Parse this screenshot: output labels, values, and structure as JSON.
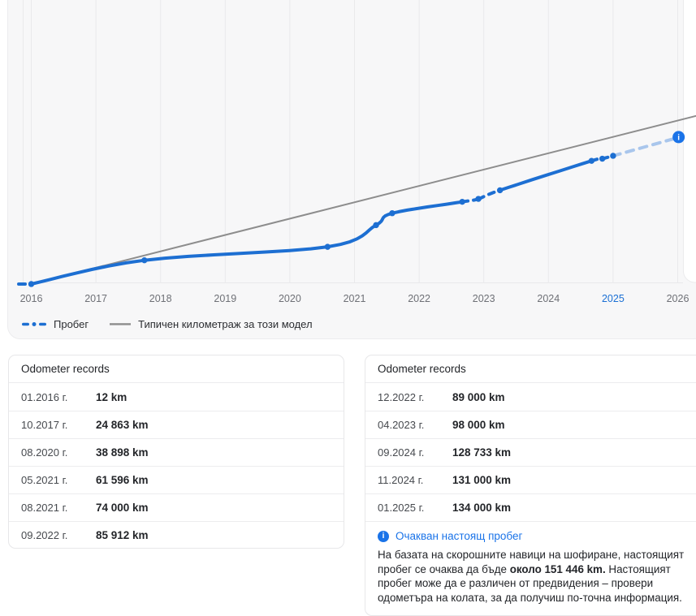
{
  "chart": {
    "x_labels": [
      "2016",
      "2017",
      "2018",
      "2019",
      "2020",
      "2021",
      "2022",
      "2023",
      "2024",
      "2025",
      "2026"
    ],
    "highlighted_year": "2025",
    "legend": {
      "series1": "Пробег",
      "series2": "Типичен километраж за този модел"
    },
    "colors": {
      "primary_blue": "#1d6fd2",
      "forecast_blue": "#a9c6ec",
      "info_blue": "#1a73e8",
      "typical_gray": "#8d8d8d",
      "grid": "#e9e9eb"
    },
    "chart_data": {
      "type": "line",
      "x_unit": "year",
      "x_range": [
        2016,
        2026
      ],
      "y_unit": "km",
      "ylim_km": [
        0,
        295000
      ],
      "grid": "vertical-years-only",
      "legend_position": "bottom-left",
      "series": [
        {
          "name": "Пробег",
          "points": [
            {
              "date": "01.2016",
              "km": 12
            },
            {
              "date": "10.2017",
              "km": 24863
            },
            {
              "date": "08.2020",
              "km": 38898
            },
            {
              "date": "05.2021",
              "km": 61596
            },
            {
              "date": "08.2021",
              "km": 74000
            },
            {
              "date": "09.2022",
              "km": 85912
            },
            {
              "date": "12.2022",
              "km": 89000
            },
            {
              "date": "04.2023",
              "km": 98000
            },
            {
              "date": "09.2024",
              "km": 128733
            },
            {
              "date": "11.2024",
              "km": 131000
            },
            {
              "date": "01.2025",
              "km": 134000
            }
          ],
          "forecast_point": {
            "km": 151446
          }
        },
        {
          "name": "Типичен километраж за този модел",
          "points": [
            {
              "year": 2016,
              "km": 0
            },
            {
              "year": 2026.3,
              "km": 176000
            }
          ]
        }
      ]
    }
  },
  "left_card": {
    "title": "Odometer records",
    "rows": [
      {
        "date": "01.2016 г.",
        "value": "12 km"
      },
      {
        "date": "10.2017 г.",
        "value": "24 863 km"
      },
      {
        "date": "08.2020 г.",
        "value": "38 898 km"
      },
      {
        "date": "05.2021 г.",
        "value": "61 596 km"
      },
      {
        "date": "08.2021 г.",
        "value": "74 000 km"
      },
      {
        "date": "09.2022 г.",
        "value": "85 912 km"
      }
    ]
  },
  "right_card": {
    "title": "Odometer records",
    "rows": [
      {
        "date": "12.2022 г.",
        "value": "89 000 km"
      },
      {
        "date": "04.2023 г.",
        "value": "98 000 km"
      },
      {
        "date": "09.2024 г.",
        "value": "128 733 km"
      },
      {
        "date": "11.2024 г.",
        "value": "131 000 km"
      },
      {
        "date": "01.2025 г.",
        "value": "134 000 km"
      }
    ],
    "info": {
      "icon_glyph": "i",
      "title": "Очакван настоящ пробег",
      "body_pre": "На базата на скорошните навици на шофиране, настоящият пробег се очаква да бъде ",
      "body_bold": "около 151 446 km.",
      "body_post": " Настоящият пробег може да е различен от предвидения – провери одометъра на колата, за да получиш по-точна информация."
    }
  }
}
